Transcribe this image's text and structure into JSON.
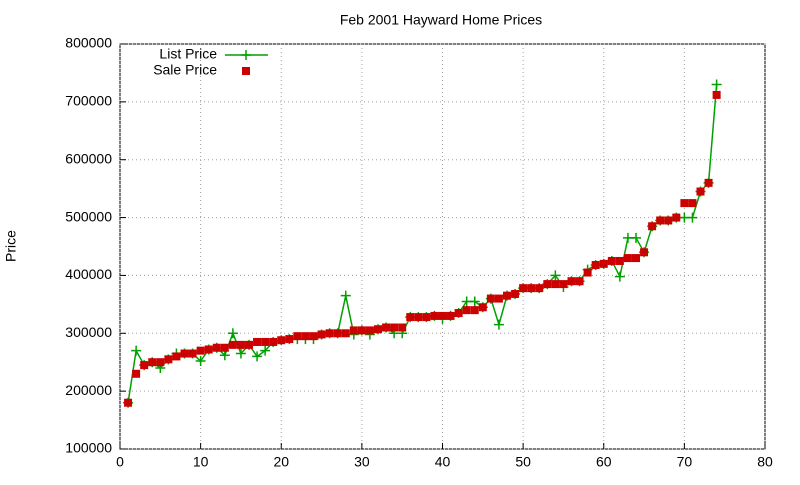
{
  "chart_data": {
    "type": "line",
    "title": "Feb 2001 Hayward Home Prices",
    "y_label": "Price",
    "x": [
      1,
      2,
      3,
      4,
      5,
      6,
      7,
      8,
      9,
      10,
      11,
      12,
      13,
      14,
      15,
      16,
      17,
      18,
      19,
      20,
      21,
      22,
      23,
      24,
      25,
      26,
      27,
      28,
      29,
      30,
      31,
      32,
      33,
      34,
      35,
      36,
      37,
      38,
      39,
      40,
      41,
      42,
      43,
      44,
      45,
      46,
      47,
      48,
      49,
      50,
      51,
      52,
      53,
      54,
      55,
      56,
      57,
      58,
      59,
      60,
      61,
      62,
      63,
      64,
      65,
      66,
      67,
      68,
      69,
      70,
      71,
      72,
      73,
      74
    ],
    "series": [
      {
        "name": "List Price",
        "color": "#00a000",
        "style": "linespoints",
        "values": [
          180000,
          270000,
          245000,
          250000,
          240000,
          255000,
          265000,
          265000,
          265000,
          252000,
          272000,
          275000,
          262000,
          300000,
          265000,
          280000,
          260000,
          270000,
          285000,
          288000,
          290000,
          290000,
          290000,
          290000,
          298000,
          300000,
          300000,
          365000,
          298000,
          305000,
          298000,
          307000,
          310000,
          300000,
          300000,
          328000,
          328000,
          328000,
          330000,
          325000,
          330000,
          335000,
          355000,
          355000,
          345000,
          360000,
          315000,
          365000,
          368000,
          378000,
          378000,
          378000,
          385000,
          400000,
          380000,
          390000,
          390000,
          410000,
          418000,
          420000,
          425000,
          398000,
          465000,
          465000,
          440000,
          485000,
          495000,
          495000,
          500000,
          500000,
          500000,
          545000,
          560000,
          730000
        ]
      },
      {
        "name": "Sale Price",
        "color": "#cc0000",
        "style": "points",
        "values": [
          180000,
          230000,
          245000,
          250000,
          250000,
          255000,
          260000,
          265000,
          265000,
          270000,
          272000,
          275000,
          275000,
          280000,
          280000,
          280000,
          285000,
          285000,
          285000,
          288000,
          290000,
          295000,
          295000,
          295000,
          298000,
          300000,
          300000,
          300000,
          305000,
          305000,
          305000,
          307000,
          310000,
          310000,
          310000,
          328000,
          328000,
          328000,
          330000,
          330000,
          330000,
          335000,
          340000,
          340000,
          345000,
          360000,
          360000,
          365000,
          368000,
          378000,
          378000,
          378000,
          385000,
          385000,
          385000,
          390000,
          390000,
          405000,
          418000,
          420000,
          425000,
          425000,
          430000,
          430000,
          440000,
          485000,
          495000,
          495000,
          500000,
          525000,
          525000,
          545000,
          560000,
          712000
        ]
      }
    ],
    "xlim": [
      0,
      80
    ],
    "xticks": [
      0,
      10,
      20,
      30,
      40,
      50,
      60,
      70,
      80
    ],
    "ylim": [
      100000,
      800000
    ],
    "yticks": [
      100000,
      200000,
      300000,
      400000,
      500000,
      600000,
      700000,
      800000
    ],
    "grid": true,
    "legend": "top-left"
  }
}
